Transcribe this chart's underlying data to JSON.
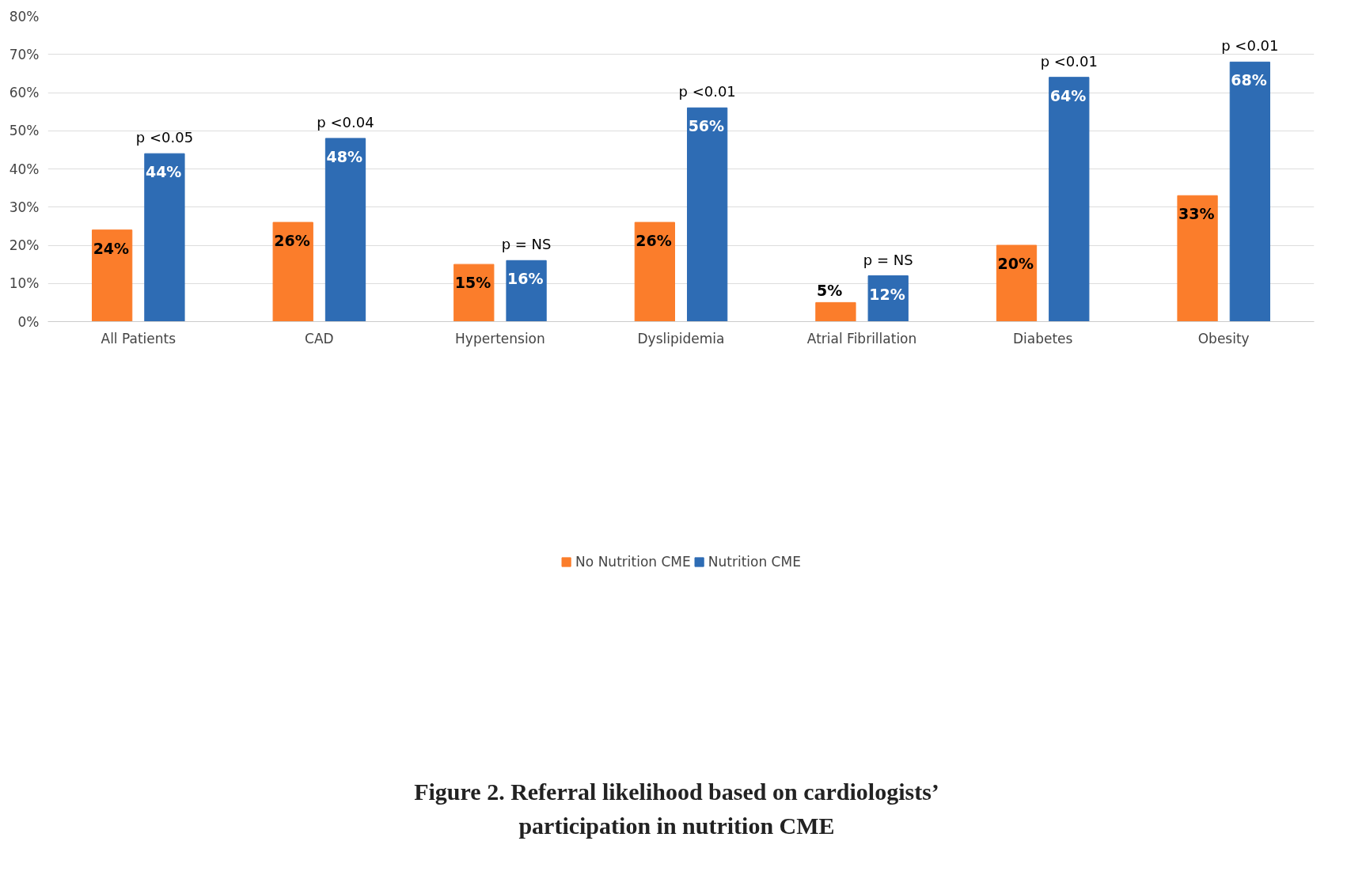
{
  "chart_data": {
    "type": "bar",
    "title": "Figure 2. Referral likelihood based on cardiologists’\nparticipation in nutrition CME",
    "categories": [
      "All Patients",
      "CAD",
      "Hypertension",
      "Dyslipidemia",
      "Atrial Fibrillation",
      "Diabetes",
      "Obesity"
    ],
    "series": [
      {
        "name": "No Nutrition CME",
        "color": "#fb7d2b",
        "values": [
          24,
          26,
          15,
          26,
          5,
          20,
          33
        ],
        "value_labels": [
          "24%",
          "26%",
          "15%",
          "26%",
          "5%",
          "20%",
          "33%"
        ]
      },
      {
        "name": "Nutrition CME",
        "color": "#2e6cb4",
        "values": [
          44,
          48,
          16,
          56,
          12,
          64,
          68
        ],
        "value_labels": [
          "44%",
          "48%",
          "16%",
          "56%",
          "12%",
          "64%",
          "68%"
        ]
      }
    ],
    "ylim": [
      0,
      80
    ],
    "yticks": [
      {
        "value": 0,
        "label": "0%"
      },
      {
        "value": 10,
        "label": "10%"
      },
      {
        "value": 20,
        "label": "20%"
      },
      {
        "value": 30,
        "label": "30%"
      },
      {
        "value": 40,
        "label": "40%"
      },
      {
        "value": 50,
        "label": "50%"
      },
      {
        "value": 60,
        "label": "60%"
      },
      {
        "value": 70,
        "label": "70%"
      },
      {
        "value": 80,
        "label": "80%"
      }
    ],
    "grid": "y",
    "legend": "bottom",
    "annotations": [
      "p <0.05",
      "p <0.04",
      "p = NS",
      "p <0.01",
      "p = NS",
      "p <0.01",
      "p <0.01"
    ]
  }
}
